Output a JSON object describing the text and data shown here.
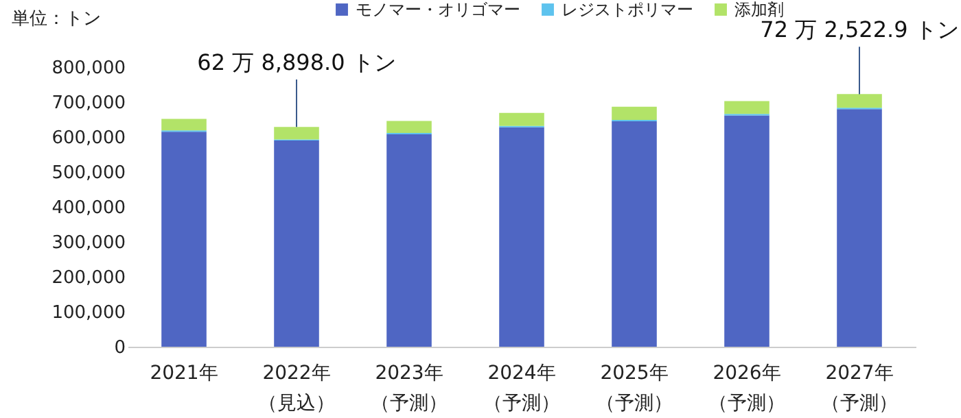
{
  "chart_data": {
    "type": "bar",
    "stacked": true,
    "ylabel": "単位：トン",
    "categories": [
      "2021年",
      "2022年（見込）",
      "2023年（予測）",
      "2024年（予測）",
      "2025年（予測）",
      "2026年（予測）",
      "2027年（予測）"
    ],
    "series": [
      {
        "name": "モノマー・オリゴマー",
        "color": "#4f66c3",
        "values": [
          615000,
          590000,
          608000,
          628000,
          645000,
          662000,
          680000
        ]
      },
      {
        "name": "レジストポリマー",
        "color": "#5ec3ee",
        "values": [
          4000,
          3000,
          4000,
          4000,
          4000,
          4000,
          4000
        ]
      },
      {
        "name": "添加剤",
        "color": "#b2e368",
        "values": [
          33000,
          36000,
          34000,
          37000,
          38000,
          37000,
          39000
        ]
      }
    ],
    "ylim": [
      0,
      800000
    ],
    "yticks": [
      0,
      {
        "value": 100000,
        "label": "100,000"
      },
      {
        "value": 200000,
        "label": "200,000"
      },
      {
        "value": 300000,
        "label": "300,000"
      },
      {
        "value": 400000,
        "label": "400,000"
      },
      {
        "value": 500000,
        "label": "500,000"
      },
      {
        "value": 600000,
        "label": "600,000"
      },
      {
        "value": 700000,
        "label": "700,000"
      },
      {
        "value": 800000,
        "label": "800,000"
      }
    ],
    "grid": false,
    "legend": "top",
    "annotations": [
      {
        "text": "62 万 8,898.0 トン",
        "x": "2022年（見込）",
        "y": 628898
      },
      {
        "text": "72 万 2,522.9 トン",
        "x": "2027年（予測）",
        "y": 722522.9
      }
    ]
  }
}
